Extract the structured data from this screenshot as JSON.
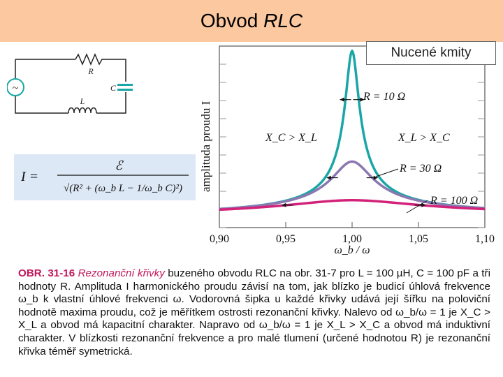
{
  "slide": {
    "title_main": "Obvod",
    "title_italic": "RLC",
    "subtitle": "Nucené kmity"
  },
  "circuit": {
    "label_R": "R",
    "label_C": "C",
    "label_L": "L",
    "source_symbol": "~"
  },
  "formula": {
    "lhs": "I =",
    "numerator": "ℰ",
    "denominator": "√(R² + (ω_b L − 1/ω_b C)²)"
  },
  "colors": {
    "title_bar": "#fbc8a0",
    "formula_bg": "#dde8f6",
    "curve_10": "#1aa6a6",
    "curve_30": "#8b78b0",
    "curve_100": "#d2227a",
    "caption_accent": "#c2185b"
  },
  "chart_data": {
    "type": "line",
    "title": "",
    "xlabel": "ω_b / ω",
    "ylabel": "amplituda proudu I",
    "xlim": [
      0.9,
      1.1
    ],
    "ylim": [
      0,
      1
    ],
    "x_ticks": [
      "0,90",
      "0,95",
      "1,00",
      "1,05",
      "1,10"
    ],
    "x_tick_values": [
      0.9,
      0.95,
      1.0,
      1.05,
      1.1
    ],
    "series": [
      {
        "name": "R = 10 Ω",
        "resistance": 10,
        "peak_relative": 1.0
      },
      {
        "name": "R = 30 Ω",
        "resistance": 30,
        "peak_relative": 0.333
      },
      {
        "name": "R = 100 Ω",
        "resistance": 100,
        "peak_relative": 0.1
      }
    ],
    "annotations": {
      "left_region": "X_C > X_L",
      "right_region": "X_L > X_C",
      "label_10": "R = 10 Ω",
      "label_30": "R = 30 Ω",
      "label_100": "R = 100 Ω"
    },
    "circuit_L_uH": 100,
    "circuit_C_pF": 100
  },
  "caption": {
    "label": "OBR. 31-16",
    "title": "Rezonanční křivky",
    "text": "buzeného obvodu RLC na obr. 31-7 pro L = 100 µH, C = 100 pF a tři hodnoty R. Amplituda I harmonického proudu závisí na tom, jak blízko je budicí úhlová frekvence ω_b k vlastní úhlové frekvenci ω. Vodorovná šipka u každé křivky udává její šířku na poloviční hodnotě maxima proudu, což je měřítkem ostrosti rezonanční křivky. Nalevo od ω_b/ω = 1 je X_C > X_L a obvod má kapacitní charakter. Napravo od ω_b/ω = 1 je X_L > X_C a obvod má induktivní charakter. V blízkosti rezonanční frekvence a pro malé tlumení (určené hodnotou R) je rezonanční křivka téměř symetrická."
  }
}
